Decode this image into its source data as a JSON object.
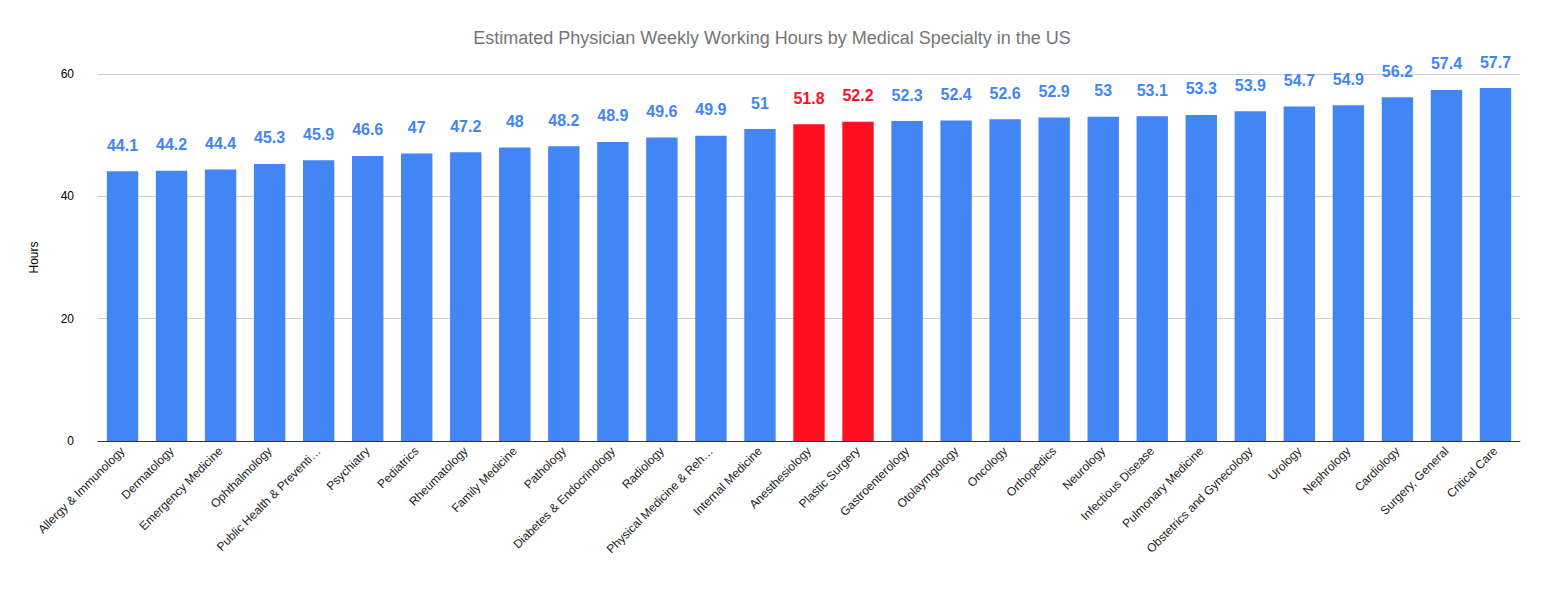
{
  "chart_data": {
    "type": "bar",
    "title": "Estimated Physician Weekly Working Hours by Medical Specialty in the US",
    "y_label": "Hours",
    "categories": [
      "Allergy & Immunology",
      "Dermatology",
      "Emergency Medicine",
      "Ophthalmology",
      "Public Health & Preventi…",
      "Psychiatry",
      "Pediatrics",
      "Rheumatology",
      "Family Medicine",
      "Pathology",
      "Diabetes & Endocrinology",
      "Radiology",
      "Physical Medicine & Reh…",
      "Internal Medicine",
      "Anesthesiology",
      "Plastic Surgery",
      "Gastroenterology",
      "Otolayrngology",
      "Oncology",
      "Orthopedics",
      "Neurology",
      "Infectious Disease",
      "Pulmonary Medicine",
      "Obstetrics and Gynecology",
      "Urology",
      "Nephrology",
      "Cardiology",
      "Surgery, General",
      "Critical Care"
    ],
    "values": [
      44.1,
      44.2,
      44.4,
      45.3,
      45.9,
      46.6,
      47,
      47.2,
      48,
      48.2,
      48.9,
      49.6,
      49.9,
      51,
      51.8,
      52.2,
      52.3,
      52.4,
      52.6,
      52.9,
      53,
      53.1,
      53.3,
      53.9,
      54.7,
      54.9,
      56.2,
      57.4,
      57.7
    ],
    "colors": [
      "#4285f4",
      "#4285f4",
      "#4285f4",
      "#4285f4",
      "#4285f4",
      "#4285f4",
      "#4285f4",
      "#4285f4",
      "#4285f4",
      "#4285f4",
      "#4285f4",
      "#4285f4",
      "#4285f4",
      "#4285f4",
      "#ff0f1f",
      "#ff0f1f",
      "#4285f4",
      "#4285f4",
      "#4285f4",
      "#4285f4",
      "#4285f4",
      "#4285f4",
      "#4285f4",
      "#4285f4",
      "#4285f4",
      "#4285f4",
      "#4285f4",
      "#4285f4",
      "#4285f4"
    ],
    "ylim": [
      0,
      60
    ],
    "yticks": [
      0,
      20,
      40,
      60
    ],
    "grid": true,
    "data_labels": true
  }
}
